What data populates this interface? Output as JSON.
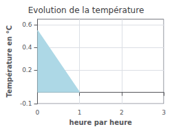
{
  "chart_data": {
    "type": "area",
    "title": "Evolution de la température",
    "xlabel": "heure par heure",
    "ylabel": "Température en °C",
    "x": [
      0,
      1
    ],
    "values": [
      0.55,
      0.0
    ],
    "color": "#add8e6",
    "xlim": [
      0,
      3
    ],
    "ylim": [
      -0.1,
      0.65
    ],
    "xticks": [
      0,
      1,
      2,
      3
    ],
    "yticks": [
      -0.1,
      0.2,
      0.4,
      0.6
    ],
    "grid": true
  }
}
